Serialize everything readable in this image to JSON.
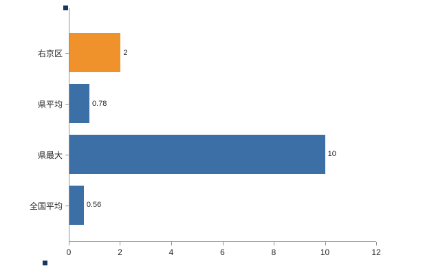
{
  "chart_data": {
    "type": "bar",
    "orientation": "horizontal",
    "title": "",
    "xlabel": "",
    "ylabel": "",
    "categories": [
      "右京区",
      "県平均",
      "県最大",
      "全国平均"
    ],
    "values": [
      2,
      0.78,
      10,
      0.56
    ],
    "value_labels": [
      "2",
      "0.78",
      "10",
      "0.56"
    ],
    "bar_colors": [
      "#F0922B",
      "#3C6FA5",
      "#3C6FA5",
      "#3C6FA5"
    ],
    "x_ticks": [
      0,
      2,
      4,
      6,
      8,
      10,
      12
    ],
    "x_tick_labels": [
      "0",
      "2",
      "4",
      "6",
      "8",
      "10",
      "12"
    ],
    "xlim": [
      0,
      12
    ],
    "grid": "off",
    "legend": "none"
  },
  "colors": {
    "background": "#ffffff",
    "axis": "#8e8e8e",
    "text": "#262626",
    "corner_marker": "#17375E"
  }
}
